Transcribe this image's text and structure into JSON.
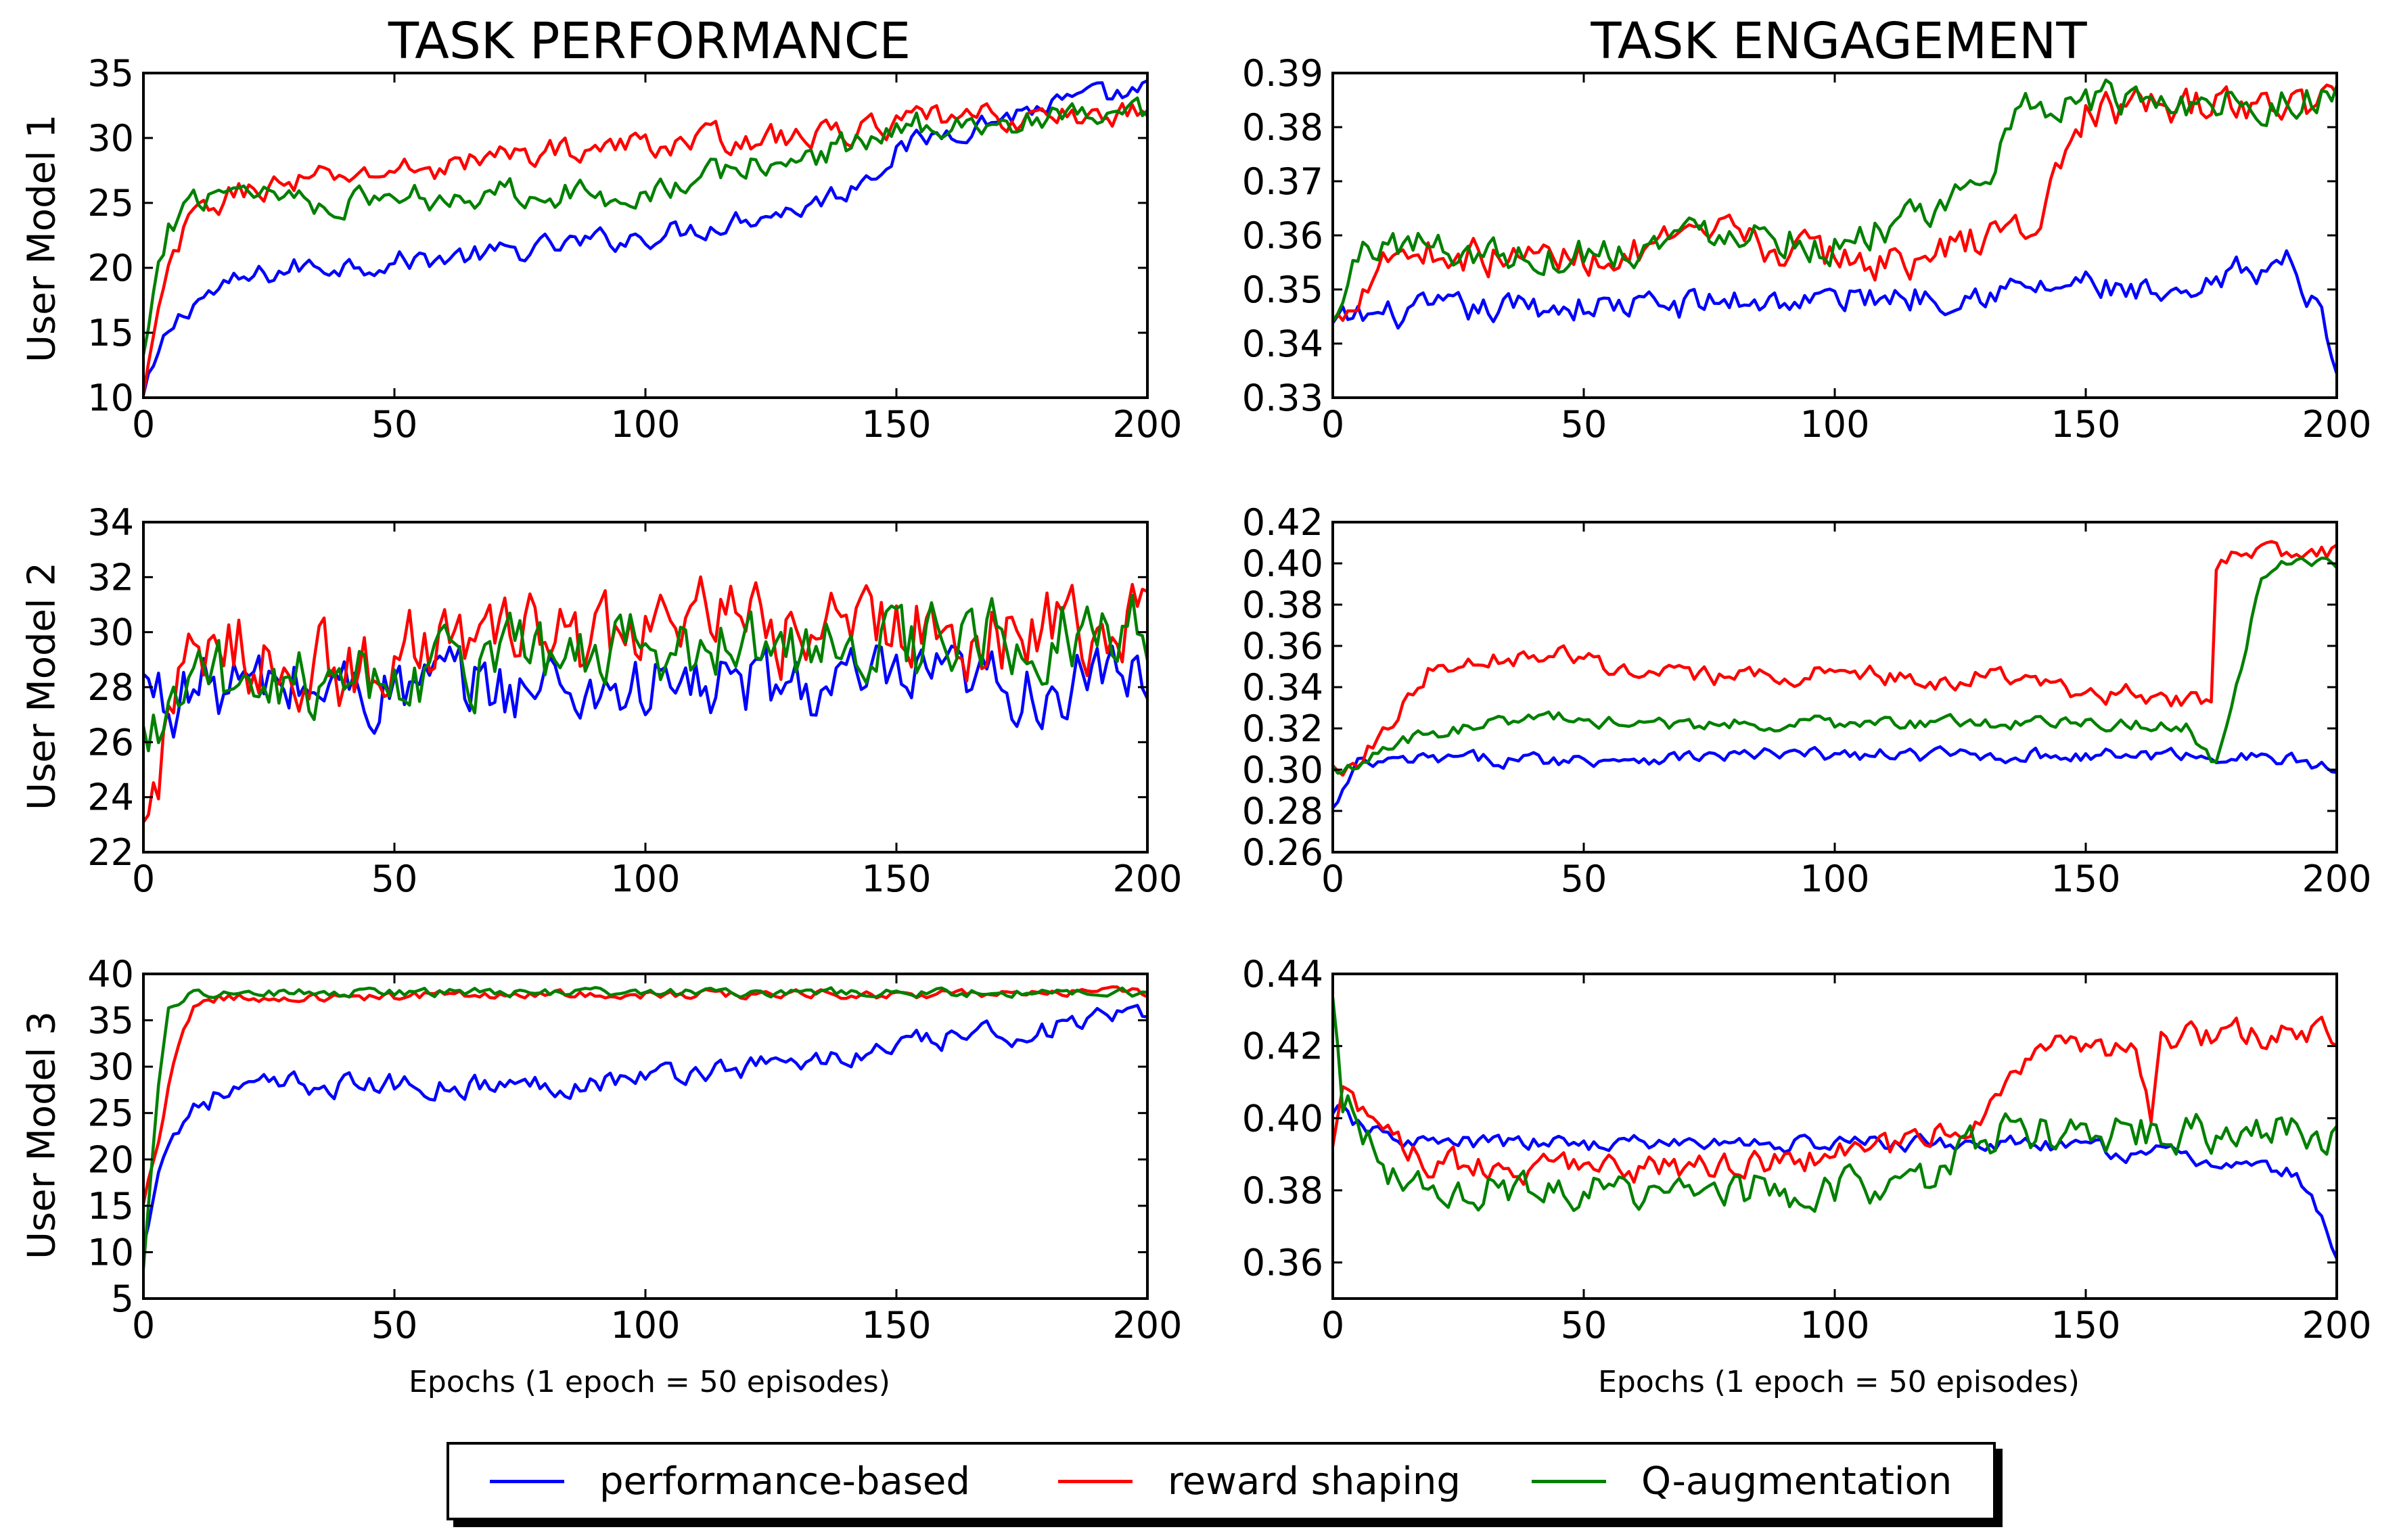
{
  "figure": {
    "col_titles": [
      "TASK PERFORMANCE",
      "TASK ENGAGEMENT"
    ],
    "row_labels": [
      "User Model 1",
      "User Model 2",
      "User Model 3"
    ],
    "x_axis_label": "Epochs (1 epoch = 50 episodes)"
  },
  "legend": {
    "items": [
      {
        "label": "performance-based",
        "color": "#0000ff"
      },
      {
        "label": "reward shaping",
        "color": "#ff0000"
      },
      {
        "label": "Q-augmentation",
        "color": "#008000"
      }
    ]
  },
  "chart_data": [
    {
      "type": "line",
      "title": "TASK PERFORMANCE",
      "ylabel": "User Model 1",
      "xlabel": "",
      "xlim": [
        0,
        200
      ],
      "ylim": [
        10,
        35
      ],
      "xticks": [
        0,
        50,
        100,
        150,
        200
      ],
      "yticks": [
        10,
        15,
        20,
        25,
        30,
        35
      ],
      "x": [
        0,
        5,
        10,
        20,
        30,
        40,
        50,
        60,
        70,
        80,
        90,
        100,
        110,
        120,
        130,
        140,
        150,
        160,
        170,
        180,
        190,
        200
      ],
      "series": [
        {
          "name": "performance-based",
          "color": "#0000ff",
          "noise": 0.8,
          "values": [
            10,
            15,
            17.5,
            19,
            20,
            20.3,
            20.5,
            20.8,
            21,
            21.5,
            22,
            22.5,
            23,
            24,
            24.5,
            26,
            29,
            30.5,
            31.5,
            32.5,
            33,
            33.5
          ]
        },
        {
          "name": "reward shaping",
          "color": "#ff0000",
          "noise": 0.9,
          "values": [
            10,
            20,
            24,
            26,
            26.5,
            27,
            27.5,
            27.8,
            28.5,
            29,
            29.2,
            29.5,
            29.8,
            30,
            30,
            30.5,
            31,
            31.5,
            31.5,
            31.5,
            31.8,
            32
          ]
        },
        {
          "name": "Q-augmentation",
          "color": "#008000",
          "noise": 1.0,
          "values": [
            13,
            23,
            25.5,
            26.5,
            25.5,
            25,
            25.5,
            25.5,
            26,
            26,
            25.5,
            26,
            26.5,
            28,
            28,
            29.5,
            30.5,
            31.5,
            31,
            31.2,
            31.5,
            31.5
          ]
        }
      ]
    },
    {
      "type": "line",
      "title": "TASK ENGAGEMENT",
      "ylabel": "",
      "xlabel": "",
      "xlim": [
        0,
        200
      ],
      "ylim": [
        0.33,
        0.39
      ],
      "xticks": [
        0,
        50,
        100,
        150,
        200
      ],
      "yticks": [
        0.33,
        0.34,
        0.35,
        0.36,
        0.37,
        0.38,
        0.39
      ],
      "x": [
        0,
        5,
        10,
        20,
        30,
        40,
        50,
        60,
        70,
        80,
        90,
        100,
        110,
        120,
        130,
        140,
        150,
        160,
        170,
        180,
        190,
        195,
        200
      ],
      "series": [
        {
          "name": "performance-based",
          "color": "#0000ff",
          "noise": 0.0025,
          "values": [
            0.343,
            0.345,
            0.345,
            0.346,
            0.346,
            0.347,
            0.347,
            0.347,
            0.347,
            0.348,
            0.348,
            0.348,
            0.349,
            0.349,
            0.35,
            0.35,
            0.351,
            0.349,
            0.347,
            0.353,
            0.355,
            0.348,
            0.338
          ]
        },
        {
          "name": "reward shaping",
          "color": "#ff0000",
          "noise": 0.003,
          "values": [
            0.343,
            0.35,
            0.357,
            0.357,
            0.356,
            0.356,
            0.356,
            0.357,
            0.358,
            0.36,
            0.357,
            0.356,
            0.355,
            0.356,
            0.36,
            0.362,
            0.383,
            0.383,
            0.384,
            0.384,
            0.384,
            0.384,
            0.385
          ]
        },
        {
          "name": "Q-augmentation",
          "color": "#008000",
          "noise": 0.003,
          "values": [
            0.343,
            0.356,
            0.359,
            0.358,
            0.357,
            0.356,
            0.357,
            0.358,
            0.36,
            0.362,
            0.36,
            0.358,
            0.362,
            0.362,
            0.372,
            0.385,
            0.385,
            0.385,
            0.385,
            0.385,
            0.385,
            0.385,
            0.385
          ]
        }
      ]
    },
    {
      "type": "line",
      "title": "",
      "ylabel": "User Model 2",
      "xlabel": "",
      "xlim": [
        0,
        200
      ],
      "ylim": [
        22,
        34
      ],
      "xticks": [
        0,
        50,
        100,
        150,
        200
      ],
      "yticks": [
        22,
        24,
        26,
        28,
        30,
        32,
        34
      ],
      "x": [
        0,
        5,
        10,
        20,
        30,
        40,
        50,
        60,
        70,
        80,
        90,
        100,
        110,
        120,
        130,
        140,
        150,
        160,
        170,
        180,
        190,
        200
      ],
      "series": [
        {
          "name": "performance-based",
          "color": "#0000ff",
          "noise": 1.2,
          "values": [
            28,
            27.5,
            28,
            28,
            28,
            28,
            27.8,
            28,
            28,
            28,
            28,
            28,
            28,
            28,
            28,
            28,
            28,
            28,
            28,
            28,
            28,
            28.5
          ]
        },
        {
          "name": "reward shaping",
          "color": "#ff0000",
          "noise": 1.4,
          "values": [
            22.5,
            27,
            28.5,
            29.5,
            29,
            28.5,
            29,
            30,
            29.5,
            30,
            29.5,
            30,
            30.5,
            30,
            30,
            30,
            30.5,
            30,
            30,
            30.5,
            30,
            30.5
          ]
        },
        {
          "name": "Q-augmentation",
          "color": "#008000",
          "noise": 1.3,
          "values": [
            26,
            27,
            28,
            28.5,
            28.5,
            28.5,
            28.5,
            29,
            29,
            29,
            29,
            29.5,
            29.5,
            29.5,
            29.5,
            29.5,
            29.5,
            29.5,
            29.5,
            30,
            30,
            30
          ]
        }
      ]
    },
    {
      "type": "line",
      "title": "",
      "ylabel": "",
      "xlabel": "",
      "xlim": [
        0,
        200
      ],
      "ylim": [
        0.26,
        0.42
      ],
      "xticks": [
        0,
        50,
        100,
        150,
        200
      ],
      "yticks": [
        0.26,
        0.28,
        0.3,
        0.32,
        0.34,
        0.36,
        0.38,
        0.4,
        0.42
      ],
      "x": [
        0,
        5,
        10,
        20,
        30,
        40,
        50,
        60,
        70,
        80,
        90,
        100,
        110,
        120,
        130,
        140,
        150,
        160,
        170,
        175,
        176,
        180,
        185,
        190,
        200
      ],
      "series": [
        {
          "name": "performance-based",
          "color": "#0000ff",
          "noise": 0.003,
          "values": [
            0.28,
            0.302,
            0.303,
            0.305,
            0.305,
            0.305,
            0.305,
            0.306,
            0.306,
            0.307,
            0.307,
            0.307,
            0.307,
            0.307,
            0.307,
            0.307,
            0.307,
            0.307,
            0.307,
            0.307,
            0.307,
            0.306,
            0.306,
            0.305,
            0.3
          ]
        },
        {
          "name": "reward shaping",
          "color": "#ff0000",
          "noise": 0.004,
          "values": [
            0.3,
            0.305,
            0.32,
            0.35,
            0.355,
            0.355,
            0.355,
            0.345,
            0.345,
            0.345,
            0.345,
            0.348,
            0.345,
            0.34,
            0.348,
            0.34,
            0.335,
            0.338,
            0.332,
            0.335,
            0.4,
            0.403,
            0.404,
            0.405,
            0.405
          ]
        },
        {
          "name": "Q-augmentation",
          "color": "#008000",
          "noise": 0.003,
          "values": [
            0.3,
            0.303,
            0.31,
            0.318,
            0.322,
            0.325,
            0.325,
            0.322,
            0.322,
            0.322,
            0.323,
            0.322,
            0.323,
            0.322,
            0.323,
            0.323,
            0.324,
            0.322,
            0.32,
            0.305,
            0.305,
            0.34,
            0.395,
            0.4,
            0.398
          ]
        }
      ]
    },
    {
      "type": "line",
      "title": "",
      "ylabel": "User Model 3",
      "xlabel": "Epochs (1 epoch = 50 episodes)",
      "xlim": [
        0,
        200
      ],
      "ylim": [
        5,
        40
      ],
      "xticks": [
        0,
        50,
        100,
        150,
        200
      ],
      "yticks": [
        5,
        10,
        15,
        20,
        25,
        30,
        35,
        40
      ],
      "x": [
        0,
        3,
        5,
        8,
        10,
        15,
        20,
        30,
        40,
        50,
        60,
        70,
        80,
        90,
        100,
        110,
        120,
        130,
        140,
        150,
        160,
        170,
        180,
        190,
        200
      ],
      "series": [
        {
          "name": "performance-based",
          "color": "#0000ff",
          "noise": 1.1,
          "values": [
            10,
            20,
            22,
            24,
            26,
            27,
            27.5,
            28,
            28,
            28,
            28,
            28,
            28,
            28.5,
            29,
            29.5,
            30,
            30.5,
            31,
            32,
            33,
            33.5,
            34,
            35,
            35
          ]
        },
        {
          "name": "reward shaping",
          "color": "#ff0000",
          "noise": 0.4,
          "values": [
            15,
            22,
            28,
            34,
            36.5,
            37.5,
            37.5,
            37.5,
            37.5,
            37.5,
            37.8,
            37.8,
            37.8,
            37.8,
            37.8,
            37.8,
            37.8,
            37.8,
            37.8,
            37.8,
            37.8,
            37.8,
            38,
            38,
            38
          ]
        },
        {
          "name": "Q-augmentation",
          "color": "#008000",
          "noise": 0.4,
          "values": [
            8,
            28,
            36,
            37.5,
            38,
            38,
            38,
            38,
            38,
            38,
            38,
            38,
            38,
            38,
            38,
            38,
            38,
            38,
            38,
            38,
            38,
            38,
            38,
            38,
            38
          ]
        }
      ]
    },
    {
      "type": "line",
      "title": "",
      "ylabel": "",
      "xlabel": "Epochs (1 epoch = 50 episodes)",
      "xlim": [
        0,
        200
      ],
      "ylim": [
        0.35,
        0.44
      ],
      "xticks": [
        0,
        50,
        100,
        150,
        200
      ],
      "yticks": [
        0.36,
        0.38,
        0.4,
        0.42,
        0.44
      ],
      "x": [
        0,
        2,
        5,
        10,
        20,
        30,
        40,
        50,
        60,
        70,
        80,
        90,
        100,
        110,
        120,
        125,
        130,
        135,
        140,
        150,
        155,
        160,
        163,
        165,
        170,
        180,
        190,
        195,
        200
      ],
      "series": [
        {
          "name": "performance-based",
          "color": "#0000ff",
          "noise": 0.002,
          "values": [
            0.4,
            0.402,
            0.398,
            0.395,
            0.393,
            0.393,
            0.393,
            0.393,
            0.393,
            0.393,
            0.393,
            0.393,
            0.393,
            0.393,
            0.393,
            0.393,
            0.393,
            0.393,
            0.392,
            0.392,
            0.391,
            0.39,
            0.39,
            0.39,
            0.389,
            0.387,
            0.385,
            0.38,
            0.36
          ]
        },
        {
          "name": "reward shaping",
          "color": "#ff0000",
          "noise": 0.0035,
          "values": [
            0.39,
            0.405,
            0.403,
            0.395,
            0.388,
            0.386,
            0.386,
            0.386,
            0.386,
            0.386,
            0.387,
            0.388,
            0.39,
            0.392,
            0.395,
            0.397,
            0.4,
            0.41,
            0.42,
            0.42,
            0.42,
            0.42,
            0.4,
            0.42,
            0.423,
            0.423,
            0.423,
            0.423,
            0.423
          ]
        },
        {
          "name": "Q-augmentation",
          "color": "#008000",
          "noise": 0.005,
          "values": [
            0.43,
            0.405,
            0.4,
            0.385,
            0.38,
            0.38,
            0.38,
            0.38,
            0.38,
            0.378,
            0.38,
            0.38,
            0.38,
            0.38,
            0.385,
            0.39,
            0.396,
            0.396,
            0.396,
            0.396,
            0.396,
            0.396,
            0.396,
            0.396,
            0.396,
            0.396,
            0.396,
            0.396,
            0.396
          ]
        }
      ]
    }
  ]
}
